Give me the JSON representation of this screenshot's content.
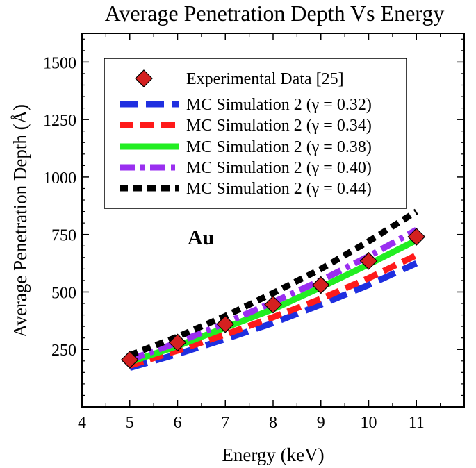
{
  "chart_data": {
    "type": "line",
    "title": "Average Penetration Depth Vs Energy",
    "xlabel": "Energy (keV)",
    "ylabel": "Average Penetration Depth (Å)",
    "annotation": "Au",
    "xlim": [
      4,
      12
    ],
    "ylim": [
      0,
      1625
    ],
    "x_ticks": [
      4,
      5,
      6,
      7,
      8,
      9,
      10,
      11
    ],
    "y_ticks": [
      250,
      500,
      750,
      1000,
      1250,
      1500
    ],
    "legend_position": "top-center",
    "experimental": {
      "name": "Experimental Data [25]",
      "color": "#d42020",
      "x": [
        5,
        6,
        7,
        8,
        9,
        10,
        11
      ],
      "y": [
        205,
        280,
        360,
        445,
        530,
        635,
        740
      ]
    },
    "series": [
      {
        "name": "MC Simulation 2 (γ = 0.32)",
        "color": "#1f2fe0",
        "dash": "long-dash",
        "x": [
          5,
          6,
          7,
          8,
          9,
          10,
          11
        ],
        "y": [
          170,
          230,
          295,
          365,
          445,
          530,
          625
        ]
      },
      {
        "name": "MC Simulation 2 (γ = 0.34)",
        "color": "#ff1a1a",
        "dash": "dash",
        "x": [
          5,
          6,
          7,
          8,
          9,
          10,
          11
        ],
        "y": [
          180,
          245,
          315,
          390,
          470,
          560,
          660
        ]
      },
      {
        "name": "MC Simulation 2 (γ = 0.38)",
        "color": "#22ee22",
        "dash": "solid",
        "x": [
          5,
          6,
          7,
          8,
          9,
          10,
          11
        ],
        "y": [
          195,
          265,
          345,
          425,
          520,
          620,
          725
        ]
      },
      {
        "name": "MC Simulation 2 (γ = 0.40)",
        "color": "#9a2ff0",
        "dash": "dash-dot",
        "x": [
          5,
          6,
          7,
          8,
          9,
          10,
          11
        ],
        "y": [
          205,
          280,
          365,
          455,
          550,
          655,
          770
        ]
      },
      {
        "name": "MC Simulation 2 (γ = 0.44)",
        "color": "#000000",
        "dash": "short-dash",
        "x": [
          5,
          6,
          7,
          8,
          9,
          10,
          11
        ],
        "y": [
          225,
          305,
          395,
          495,
          600,
          720,
          850
        ]
      }
    ]
  }
}
